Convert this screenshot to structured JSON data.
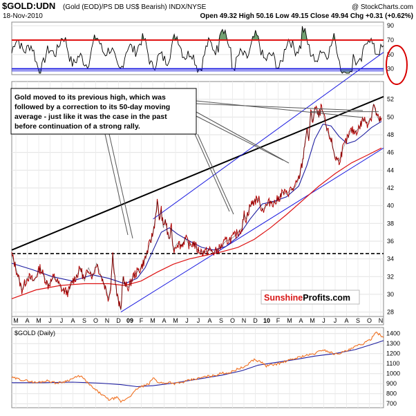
{
  "header": {
    "symbol": "$GOLD:UDN",
    "description": "(Gold (EOD)/PS DB US$ Bearish) INDX/NYSE",
    "watermark": "@ StockCharts.com",
    "date": "18-Nov-2010",
    "ohlc": "Open 49.32  High 50.16  Low 49.15  Close 49.94  Chg +0.31 (+0.62%)"
  },
  "annotation": {
    "lines": [
      "Gold moved to its previous high, which was",
      "followed by a correction to its 50-day moving",
      "average - just like it was the case in the past",
      "before continuation of a strong rally."
    ]
  },
  "logo": {
    "part1": "Sunshine",
    "part2": "Profits.com"
  },
  "colors": {
    "price": "#b00000",
    "ma_fast": "#1c1ca0",
    "ma_slow": "#dd1111",
    "rsi_band": "#e01010",
    "blue_band": "#1a1ae0",
    "gold": "#f07020",
    "gold_ma": "#1c1ca0",
    "highlight": "#d80000"
  },
  "chart_data": [
    {
      "type": "line",
      "panel": "RSI",
      "y_ticks": [
        30,
        50,
        70,
        90
      ],
      "y_range": [
        22,
        95
      ],
      "levels": [
        70,
        30
      ],
      "highlight_labels": [
        "70",
        "30"
      ]
    },
    {
      "type": "line",
      "panel": "main",
      "symbol": "$GOLD:UDN",
      "y_ticks": [
        28,
        30,
        32,
        34,
        36,
        38,
        40,
        42,
        44,
        46,
        48,
        50,
        52
      ],
      "y_range": [
        27.5,
        54
      ],
      "x_labels": [
        "M",
        "A",
        "M",
        "J",
        "J",
        "A",
        "S",
        "O",
        "N",
        "D",
        "09",
        "F",
        "M",
        "A",
        "M",
        "J",
        "J",
        "A",
        "S",
        "O",
        "N",
        "D",
        "10",
        "F",
        "M",
        "A",
        "M",
        "J",
        "J",
        "A",
        "S",
        "O",
        "N"
      ],
      "bold_labels": [
        "09",
        "10"
      ],
      "horizontal_level": 34.6,
      "price_path": [
        [
          0,
          34.5
        ],
        [
          2,
          33
        ],
        [
          5,
          30.5
        ],
        [
          8,
          32
        ],
        [
          11,
          31.5
        ],
        [
          14,
          33
        ],
        [
          18,
          31
        ],
        [
          21,
          32
        ],
        [
          25,
          30.5
        ],
        [
          28,
          30.2
        ],
        [
          30,
          31.5
        ],
        [
          32,
          32
        ],
        [
          34,
          33
        ],
        [
          36,
          31.5
        ],
        [
          38,
          33
        ],
        [
          40,
          32
        ],
        [
          42,
          33.5
        ],
        [
          44,
          32.2
        ],
        [
          46,
          31
        ],
        [
          48,
          29.5
        ],
        [
          49,
          31
        ],
        [
          50,
          34.5
        ],
        [
          51,
          32
        ],
        [
          52,
          30
        ],
        [
          53,
          29
        ],
        [
          54,
          28.2
        ],
        [
          55,
          32
        ],
        [
          56,
          31
        ],
        [
          58,
          30.8
        ],
        [
          60,
          32
        ],
        [
          62,
          32.5
        ],
        [
          64,
          33
        ],
        [
          66,
          34
        ],
        [
          68,
          35.5
        ],
        [
          70,
          37
        ],
        [
          71,
          38.5
        ],
        [
          72,
          40.5
        ],
        [
          73,
          38.5
        ],
        [
          74,
          39.5
        ],
        [
          75,
          37.5
        ],
        [
          76,
          38.5
        ],
        [
          77,
          37
        ],
        [
          78,
          36.2
        ],
        [
          79,
          37.5
        ],
        [
          80,
          35
        ],
        [
          82,
          35.8
        ],
        [
          84,
          35.5
        ],
        [
          86,
          36.3
        ],
        [
          88,
          35.5
        ],
        [
          90,
          35.8
        ],
        [
          92,
          35
        ],
        [
          94,
          34.8
        ],
        [
          96,
          34.8
        ],
        [
          98,
          35
        ],
        [
          100,
          34.7
        ],
        [
          102,
          35
        ],
        [
          104,
          35.5
        ],
        [
          106,
          36
        ],
        [
          108,
          36.2
        ],
        [
          110,
          36.5
        ],
        [
          112,
          37
        ],
        [
          114,
          37.5
        ],
        [
          115,
          39
        ],
        [
          116,
          38.5
        ],
        [
          118,
          40
        ],
        [
          120,
          40.5
        ],
        [
          122,
          40.8
        ],
        [
          124,
          39.5
        ],
        [
          126,
          40
        ],
        [
          128,
          40.5
        ],
        [
          130,
          40.3
        ],
        [
          132,
          40.8
        ],
        [
          134,
          41.5
        ],
        [
          136,
          41.3
        ],
        [
          138,
          41.8
        ],
        [
          140,
          42
        ],
        [
          142,
          43
        ],
        [
          144,
          45
        ],
        [
          145,
          47
        ],
        [
          146,
          48.5
        ],
        [
          147,
          47.5
        ],
        [
          148,
          50.5
        ],
        [
          149,
          49.5
        ],
        [
          150,
          51
        ],
        [
          151,
          50.7
        ],
        [
          152,
          50
        ],
        [
          153,
          51
        ],
        [
          154,
          50.5
        ],
        [
          156,
          48.5
        ],
        [
          158,
          47.5
        ],
        [
          160,
          45.5
        ],
        [
          162,
          45
        ],
        [
          164,
          46.5
        ],
        [
          166,
          47.5
        ],
        [
          168,
          48.5
        ],
        [
          170,
          48.3
        ],
        [
          172,
          48.8
        ],
        [
          174,
          49.8
        ],
        [
          176,
          49.3
        ],
        [
          178,
          50
        ],
        [
          179,
          51.5
        ],
        [
          180,
          50.7
        ],
        [
          181,
          50
        ],
        [
          182,
          49.5
        ],
        [
          183,
          49.9
        ]
      ],
      "ma50_path": [
        [
          0,
          33.5
        ],
        [
          10,
          32.8
        ],
        [
          20,
          32
        ],
        [
          30,
          31.5
        ],
        [
          40,
          32.2
        ],
        [
          48,
          31.8
        ],
        [
          56,
          31.2
        ],
        [
          62,
          31.8
        ],
        [
          66,
          33
        ],
        [
          70,
          35
        ],
        [
          74,
          37
        ],
        [
          78,
          37.5
        ],
        [
          82,
          36.8
        ],
        [
          88,
          36
        ],
        [
          94,
          35.3
        ],
        [
          100,
          35
        ],
        [
          106,
          35.4
        ],
        [
          112,
          36.5
        ],
        [
          118,
          38.5
        ],
        [
          124,
          40.2
        ],
        [
          130,
          40.5
        ],
        [
          136,
          41
        ],
        [
          142,
          42.2
        ],
        [
          146,
          44.5
        ],
        [
          150,
          47.5
        ],
        [
          154,
          49.2
        ],
        [
          158,
          49
        ],
        [
          162,
          47.8
        ],
        [
          166,
          47
        ],
        [
          170,
          47.3
        ],
        [
          174,
          48
        ],
        [
          178,
          48.8
        ],
        [
          183,
          49.5
        ]
      ],
      "ma200_path": [
        [
          0,
          29.5
        ],
        [
          12,
          30.5
        ],
        [
          24,
          31
        ],
        [
          36,
          31.2
        ],
        [
          48,
          31.2
        ],
        [
          56,
          31
        ],
        [
          64,
          31.5
        ],
        [
          72,
          32.5
        ],
        [
          80,
          33.4
        ],
        [
          88,
          34
        ],
        [
          96,
          34.4
        ],
        [
          104,
          34.8
        ],
        [
          112,
          35.3
        ],
        [
          120,
          36.2
        ],
        [
          128,
          37.5
        ],
        [
          136,
          39
        ],
        [
          144,
          40.6
        ],
        [
          152,
          42.2
        ],
        [
          160,
          43.6
        ],
        [
          168,
          44.8
        ],
        [
          176,
          45.7
        ],
        [
          183,
          46.5
        ]
      ],
      "trend_lines": [
        {
          "color": "black",
          "from": [
            0,
            35
          ],
          "to": [
            184,
            52.3
          ]
        },
        {
          "color": "blue",
          "from": [
            54,
            28
          ],
          "to": [
            184,
            46.5
          ]
        },
        {
          "color": "blue",
          "from": [
            70,
            38.5
          ],
          "to": [
            184,
            57.3
          ]
        }
      ]
    },
    {
      "type": "line",
      "panel": "$GOLD (Daily)",
      "title": "$GOLD (Daily)",
      "y_ticks": [
        700,
        800,
        900,
        1000,
        1100,
        1200,
        1300,
        1400
      ],
      "y_range": [
        660,
        1460
      ],
      "gold_path": [
        [
          0,
          960
        ],
        [
          6,
          935
        ],
        [
          12,
          910
        ],
        [
          18,
          930
        ],
        [
          22,
          905
        ],
        [
          26,
          920
        ],
        [
          30,
          950
        ],
        [
          34,
          980
        ],
        [
          38,
          900
        ],
        [
          40,
          860
        ],
        [
          42,
          830
        ],
        [
          44,
          800
        ],
        [
          46,
          770
        ],
        [
          48,
          740
        ],
        [
          50,
          750
        ],
        [
          52,
          760
        ],
        [
          54,
          720
        ],
        [
          56,
          740
        ],
        [
          58,
          770
        ],
        [
          60,
          800
        ],
        [
          62,
          850
        ],
        [
          64,
          870
        ],
        [
          66,
          880
        ],
        [
          68,
          900
        ],
        [
          70,
          960
        ],
        [
          71,
          940
        ],
        [
          72,
          920
        ],
        [
          74,
          910
        ],
        [
          76,
          900
        ],
        [
          78,
          920
        ],
        [
          80,
          900
        ],
        [
          84,
          910
        ],
        [
          88,
          935
        ],
        [
          92,
          950
        ],
        [
          96,
          970
        ],
        [
          100,
          980
        ],
        [
          104,
          1005
        ],
        [
          108,
          1010
        ],
        [
          112,
          1050
        ],
        [
          116,
          1070
        ],
        [
          118,
          1120
        ],
        [
          120,
          1140
        ],
        [
          122,
          1125
        ],
        [
          124,
          1110
        ],
        [
          126,
          1075
        ],
        [
          128,
          1085
        ],
        [
          132,
          1100
        ],
        [
          136,
          1125
        ],
        [
          140,
          1150
        ],
        [
          144,
          1175
        ],
        [
          148,
          1190
        ],
        [
          150,
          1200
        ],
        [
          154,
          1240
        ],
        [
          158,
          1210
        ],
        [
          160,
          1195
        ],
        [
          164,
          1215
        ],
        [
          168,
          1245
        ],
        [
          170,
          1270
        ],
        [
          174,
          1300
        ],
        [
          176,
          1320
        ],
        [
          178,
          1350
        ],
        [
          180,
          1420
        ],
        [
          182,
          1390
        ],
        [
          184,
          1360
        ]
      ],
      "gold_ma_path": [
        [
          0,
          910
        ],
        [
          16,
          910
        ],
        [
          30,
          915
        ],
        [
          44,
          905
        ],
        [
          54,
          890
        ],
        [
          62,
          870
        ],
        [
          70,
          880
        ],
        [
          80,
          905
        ],
        [
          92,
          945
        ],
        [
          104,
          985
        ],
        [
          114,
          1030
        ],
        [
          122,
          1085
        ],
        [
          130,
          1110
        ],
        [
          140,
          1140
        ],
        [
          150,
          1175
        ],
        [
          160,
          1200
        ],
        [
          170,
          1240
        ],
        [
          178,
          1290
        ],
        [
          184,
          1330
        ]
      ]
    }
  ]
}
